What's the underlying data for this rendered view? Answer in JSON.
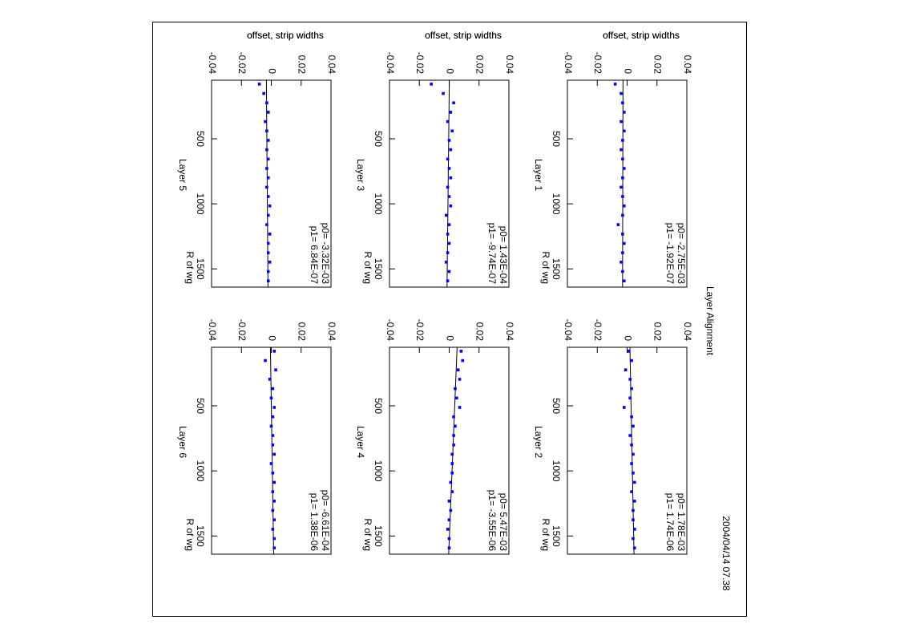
{
  "title": "Layer Alignment",
  "timestamp": "2004/04/14  07.38",
  "chart_data": [
    {
      "type": "scatter",
      "title": "Layer 1",
      "xlabel": "R of wg",
      "ylabel": "offset, strip widths",
      "color": "#0000ff",
      "x": [
        80,
        152,
        224,
        296,
        368,
        440,
        512,
        584,
        656,
        728,
        800,
        872,
        944,
        1016,
        1088,
        1160,
        1232,
        1304,
        1376,
        1448,
        1520,
        1592
      ],
      "values": [
        -0.008,
        -0.004,
        -0.003,
        -0.002,
        -0.004,
        -0.002,
        -0.003,
        -0.004,
        -0.003,
        -0.002,
        -0.003,
        -0.004,
        -0.003,
        -0.002,
        -0.003,
        -0.006,
        -0.003,
        -0.002,
        -0.003,
        -0.004,
        -0.003,
        -0.002
      ],
      "fit": {
        "x": [
          50,
          1640
        ],
        "values": [
          -0.00276,
          -0.00306
        ]
      },
      "fit_labels": [
        "p0= -2.75E-03",
        "p1= -1.92E-07"
      ],
      "xlim": [
        50,
        1640
      ],
      "ylim": [
        -0.04,
        0.04
      ],
      "xticks": [
        500,
        1000,
        1500
      ],
      "yticks": [
        -0.04,
        -0.02,
        0,
        0.02,
        0.04
      ]
    },
    {
      "type": "scatter",
      "title": "Layer 2",
      "xlabel": "R of wg",
      "ylabel": "offset, strip widths",
      "color": "#0000ff",
      "x": [
        80,
        152,
        224,
        296,
        368,
        440,
        512,
        584,
        656,
        728,
        800,
        872,
        944,
        1016,
        1088,
        1160,
        1232,
        1304,
        1376,
        1448,
        1520,
        1592
      ],
      "values": [
        0.001,
        0.003,
        -0.001,
        0.002,
        0.003,
        0.002,
        -0.002,
        0.003,
        0.004,
        0.002,
        0.003,
        0.004,
        0.003,
        0.004,
        0.005,
        0.003,
        0.005,
        0.004,
        0.004,
        0.005,
        0.004,
        0.005
      ],
      "fit": {
        "x": [
          50,
          1640
        ],
        "values": [
          0.00187,
          0.00463
        ]
      },
      "fit_labels": [
        "p0=  1.78E-03",
        "p1=  1.74E-06"
      ],
      "xlim": [
        50,
        1640
      ],
      "ylim": [
        -0.04,
        0.04
      ],
      "xticks": [
        500,
        1000,
        1500
      ],
      "yticks": [
        -0.04,
        -0.02,
        0,
        0.02,
        0.04
      ]
    },
    {
      "type": "scatter",
      "title": "Layer 3",
      "xlabel": "R of wg",
      "ylabel": "offset, strip widths",
      "color": "#0000ff",
      "x": [
        80,
        152,
        224,
        296,
        368,
        440,
        512,
        584,
        656,
        728,
        800,
        872,
        944,
        1016,
        1088,
        1160,
        1232,
        1304,
        1376,
        1448,
        1520,
        1592
      ],
      "values": [
        -0.012,
        -0.004,
        0.003,
        0.001,
        -0.001,
        0.002,
        0.0,
        0.001,
        -0.001,
        0.0,
        0.001,
        -0.001,
        0.0,
        0.001,
        -0.002,
        0.0,
        -0.001,
        0.0,
        -0.001,
        -0.002,
        0.0,
        -0.001
      ],
      "fit": {
        "x": [
          50,
          1640
        ],
        "values": [
          9.4e-05,
          -0.00145
        ]
      },
      "fit_labels": [
        "p0=  1.43E-04",
        "p1= -9.74E-07"
      ],
      "xlim": [
        50,
        1640
      ],
      "ylim": [
        -0.04,
        0.04
      ],
      "xticks": [
        500,
        1000,
        1500
      ],
      "yticks": [
        -0.04,
        -0.02,
        0,
        0.02,
        0.04
      ]
    },
    {
      "type": "scatter",
      "title": "Layer 4",
      "xlabel": "R of wg",
      "ylabel": "offset, strip widths",
      "color": "#0000ff",
      "x": [
        80,
        152,
        224,
        296,
        368,
        440,
        512,
        584,
        656,
        728,
        800,
        872,
        944,
        1016,
        1088,
        1160,
        1232,
        1304,
        1376,
        1448,
        1520,
        1592
      ],
      "values": [
        0.008,
        0.009,
        0.006,
        0.007,
        0.004,
        0.005,
        0.007,
        0.003,
        0.004,
        0.003,
        0.003,
        0.002,
        0.002,
        0.002,
        0.001,
        0.002,
        0.0,
        0.001,
        0.0,
        -0.001,
        0.0,
        0.0
      ],
      "fit": {
        "x": [
          50,
          1640
        ],
        "values": [
          0.00529,
          -0.00035
        ]
      },
      "fit_labels": [
        "p0=  5.47E-03",
        "p1= -3.55E-06"
      ],
      "xlim": [
        50,
        1640
      ],
      "ylim": [
        -0.04,
        0.04
      ],
      "xticks": [
        500,
        1000,
        1500
      ],
      "yticks": [
        -0.04,
        -0.02,
        0,
        0.02,
        0.04
      ]
    },
    {
      "type": "scatter",
      "title": "Layer 5",
      "xlabel": "R of wg",
      "ylabel": "offset, strip widths",
      "color": "#0000ff",
      "x": [
        80,
        152,
        224,
        296,
        368,
        440,
        512,
        584,
        656,
        728,
        800,
        872,
        944,
        1016,
        1088,
        1160,
        1232,
        1304,
        1376,
        1448,
        1520,
        1592
      ],
      "values": [
        -0.008,
        -0.005,
        -0.003,
        -0.002,
        -0.004,
        -0.003,
        -0.002,
        -0.003,
        -0.002,
        -0.003,
        -0.002,
        -0.003,
        -0.002,
        -0.001,
        -0.002,
        -0.003,
        -0.001,
        -0.002,
        -0.002,
        -0.001,
        -0.002,
        -0.002
      ],
      "fit": {
        "x": [
          50,
          1640
        ],
        "values": [
          -0.00329,
          -0.0022
        ]
      },
      "fit_labels": [
        "p0= -3.32E-03",
        "p1=  6.84E-07"
      ],
      "xlim": [
        50,
        1640
      ],
      "ylim": [
        -0.04,
        0.04
      ],
      "xticks": [
        500,
        1000,
        1500
      ],
      "yticks": [
        -0.04,
        -0.02,
        0,
        0.02,
        0.04
      ]
    },
    {
      "type": "scatter",
      "title": "Layer 6",
      "xlabel": "R of wg",
      "ylabel": "offset, strip widths",
      "color": "#0000ff",
      "x": [
        80,
        152,
        224,
        296,
        368,
        440,
        512,
        584,
        656,
        728,
        800,
        872,
        944,
        1016,
        1088,
        1160,
        1232,
        1304,
        1376,
        1448,
        1520,
        1592
      ],
      "values": [
        0.002,
        -0.004,
        0.003,
        -0.001,
        0.001,
        0.0,
        0.002,
        0.001,
        0.0,
        0.001,
        0.001,
        0.002,
        0.0,
        0.001,
        0.002,
        0.001,
        0.002,
        0.001,
        0.002,
        0.001,
        0.002,
        0.002
      ],
      "fit": {
        "x": [
          50,
          1640
        ],
        "values": [
          -0.00059,
          0.0016
        ]
      },
      "fit_labels": [
        "p0= -6.61E-04",
        "p1=  1.38E-06"
      ],
      "xlim": [
        50,
        1640
      ],
      "ylim": [
        -0.04,
        0.04
      ],
      "xticks": [
        500,
        1000,
        1500
      ],
      "yticks": [
        -0.04,
        -0.02,
        0,
        0.02,
        0.04
      ]
    }
  ]
}
